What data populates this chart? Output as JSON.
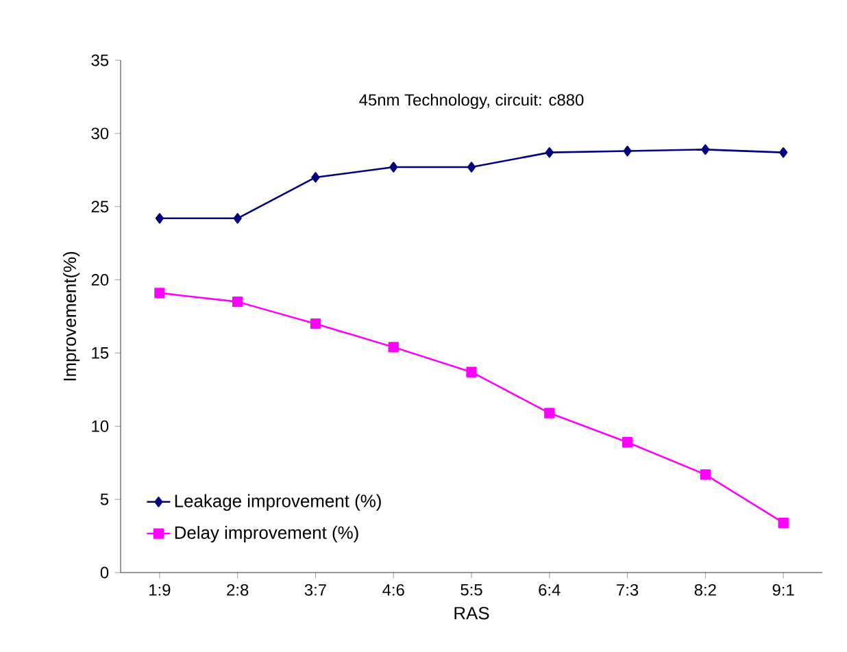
{
  "chart_data": {
    "type": "line",
    "title": "45nm Technology, circuit: c880",
    "xlabel": "RAS",
    "ylabel": "Improvement(%)",
    "categories": [
      "1:9",
      "2:8",
      "3:7",
      "4:6",
      "5:5",
      "6:4",
      "7:3",
      "8:2",
      "9:1"
    ],
    "series": [
      {
        "name": "Leakage improvement (%)",
        "color": "#000080",
        "marker": "diamond",
        "values": [
          24.2,
          24.2,
          27.0,
          27.7,
          27.7,
          28.7,
          28.8,
          28.9,
          28.7
        ]
      },
      {
        "name": "Delay improvement (%)",
        "color": "#ff00ff",
        "marker": "square",
        "values": [
          19.1,
          18.5,
          17.0,
          15.4,
          13.7,
          10.9,
          8.9,
          6.7,
          3.4
        ]
      }
    ],
    "ylim": [
      0,
      35
    ],
    "yticks": [
      0,
      5,
      10,
      15,
      20,
      25,
      30,
      35
    ],
    "grid": false,
    "legend": "bottom left",
    "line_style": "solid"
  }
}
